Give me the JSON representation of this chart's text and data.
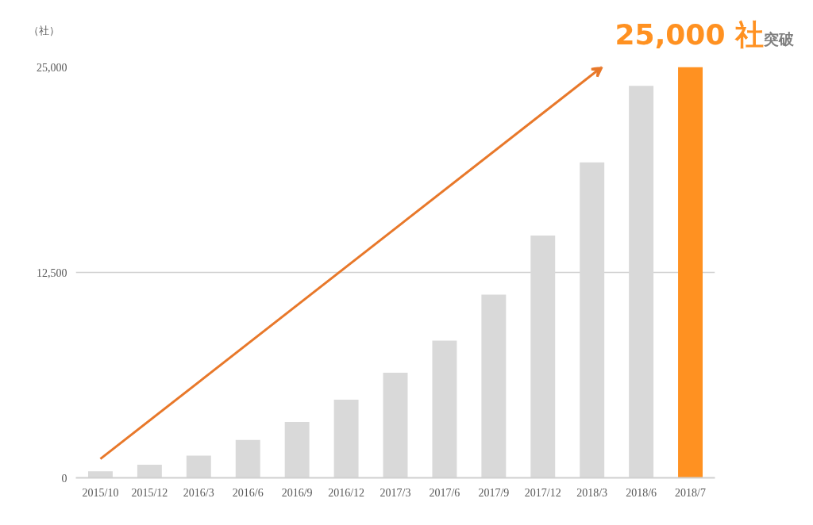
{
  "chart_data": {
    "type": "bar",
    "ylabel": "（社）",
    "categories": [
      "2015/10",
      "2015/12",
      "2016/3",
      "2016/6",
      "2016/9",
      "2016/12",
      "2017/3",
      "2017/6",
      "2017/9",
      "2017/12",
      "2018/3",
      "2018/6",
      "2018/7"
    ],
    "values": [
      400,
      800,
      1350,
      2300,
      3400,
      4750,
      6400,
      8350,
      11150,
      14750,
      19200,
      23850,
      25000
    ],
    "colors": [
      "#d9d9d9",
      "#d9d9d9",
      "#d9d9d9",
      "#d9d9d9",
      "#d9d9d9",
      "#d9d9d9",
      "#d9d9d9",
      "#d9d9d9",
      "#d9d9d9",
      "#d9d9d9",
      "#d9d9d9",
      "#d9d9d9",
      "#ff9121"
    ],
    "ylim": [
      0,
      25000
    ],
    "yticks": [
      {
        "value": 0,
        "label": "0"
      },
      {
        "value": 12500,
        "label": "12,500"
      },
      {
        "value": 25000,
        "label": "25,000"
      }
    ],
    "grid": "y",
    "annotations": [
      "25,000 社",
      "突破"
    ]
  }
}
